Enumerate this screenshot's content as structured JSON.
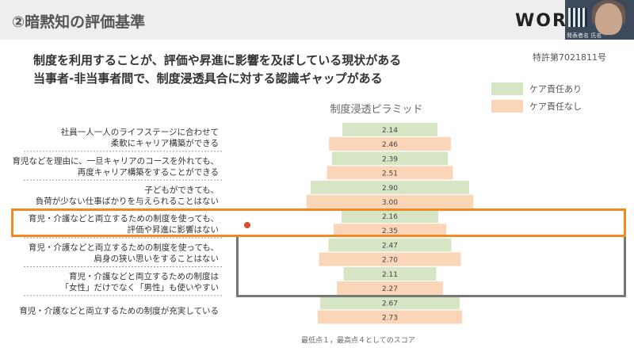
{
  "slide": {
    "title": "②暗黙知の評価基準",
    "logo": "WOR",
    "presenter_caption": "発表者名 氏名",
    "heading_line1": "制度を利用することが、評価や昇進に影響を及ぼしている現状がある",
    "heading_line2": "当事者-非当事者間で、制度浸透具合に対する認識ギャップがある",
    "patent": "特許第7021811号",
    "footnote": "最低点１，最高点４としてのスコア"
  },
  "colors": {
    "series_with_care": "#d6e5c4",
    "series_without_care": "#fbd5b8",
    "highlight_orange": "#f08a24",
    "highlight_gray": "#777777"
  },
  "chart_data": {
    "type": "bar",
    "title": "制度浸透ピラミッド",
    "orientation": "horizontal-centered",
    "categories": [
      [
        "社員一人一人のライフステージに合わせて",
        "柔軟にキャリア構築ができる"
      ],
      [
        "育児などを理由に、一旦キャリアのコースを外れても、",
        "再度キャリア構築をすることができる"
      ],
      [
        "子どもができても、",
        "負荷が少ない仕事ばかりを与えられることはない"
      ],
      [
        "育児・介護などと両立するための制度を使っても、",
        "評価や昇進に影響はない"
      ],
      [
        "育児・介護などと両立するための制度を使っても、",
        "肩身の狭い思いをすることはない"
      ],
      [
        "育児・介護などと両立するための制度は",
        "「女性」だけでなく「男性」も使いやすい"
      ],
      [
        "育児・介護などと両立するための制度が充実している"
      ]
    ],
    "series": [
      {
        "name": "ケア責任あり",
        "values": [
          2.14,
          2.39,
          2.9,
          2.16,
          2.47,
          2.11,
          2.67
        ]
      },
      {
        "name": "ケア責任なし",
        "values": [
          2.46,
          2.51,
          3.0,
          2.35,
          2.7,
          2.27,
          2.73
        ]
      }
    ],
    "value_labels": [
      [
        "2.14",
        "2.39",
        "2.90",
        "2.16",
        "2.47",
        "2.11",
        "2.67"
      ],
      [
        "2.46",
        "2.51",
        "3.00",
        "2.35",
        "2.70",
        "2.27",
        "2.73"
      ]
    ],
    "scale_min": 1,
    "scale_max": 4,
    "legend_position": "top-right",
    "grid": false
  }
}
